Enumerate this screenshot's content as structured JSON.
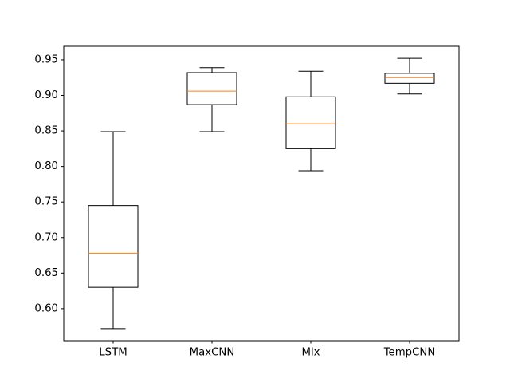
{
  "chart_data": {
    "type": "box",
    "title": "",
    "xlabel": "",
    "ylabel": "",
    "categories": [
      "LSTM",
      "MaxCNN",
      "Mix",
      "TempCNN"
    ],
    "boxes": [
      {
        "name": "LSTM",
        "whisker_low": 0.572,
        "q1": 0.63,
        "median": 0.678,
        "q3": 0.745,
        "whisker_high": 0.849
      },
      {
        "name": "MaxCNN",
        "whisker_low": 0.849,
        "q1": 0.887,
        "median": 0.906,
        "q3": 0.932,
        "whisker_high": 0.939
      },
      {
        "name": "Mix",
        "whisker_low": 0.794,
        "q1": 0.825,
        "median": 0.86,
        "q3": 0.898,
        "whisker_high": 0.934
      },
      {
        "name": "TempCNN",
        "whisker_low": 0.902,
        "q1": 0.917,
        "median": 0.925,
        "q3": 0.931,
        "whisker_high": 0.952
      }
    ],
    "ylim": [
      0.555,
      0.969
    ],
    "yticks": [
      "0.60",
      "0.65",
      "0.70",
      "0.75",
      "0.80",
      "0.85",
      "0.90",
      "0.95"
    ],
    "grid": false,
    "legend": "none",
    "colors": {
      "box": "#000000",
      "median": "#ff7f0e",
      "axes": "#000000",
      "background": "#ffffff"
    }
  }
}
